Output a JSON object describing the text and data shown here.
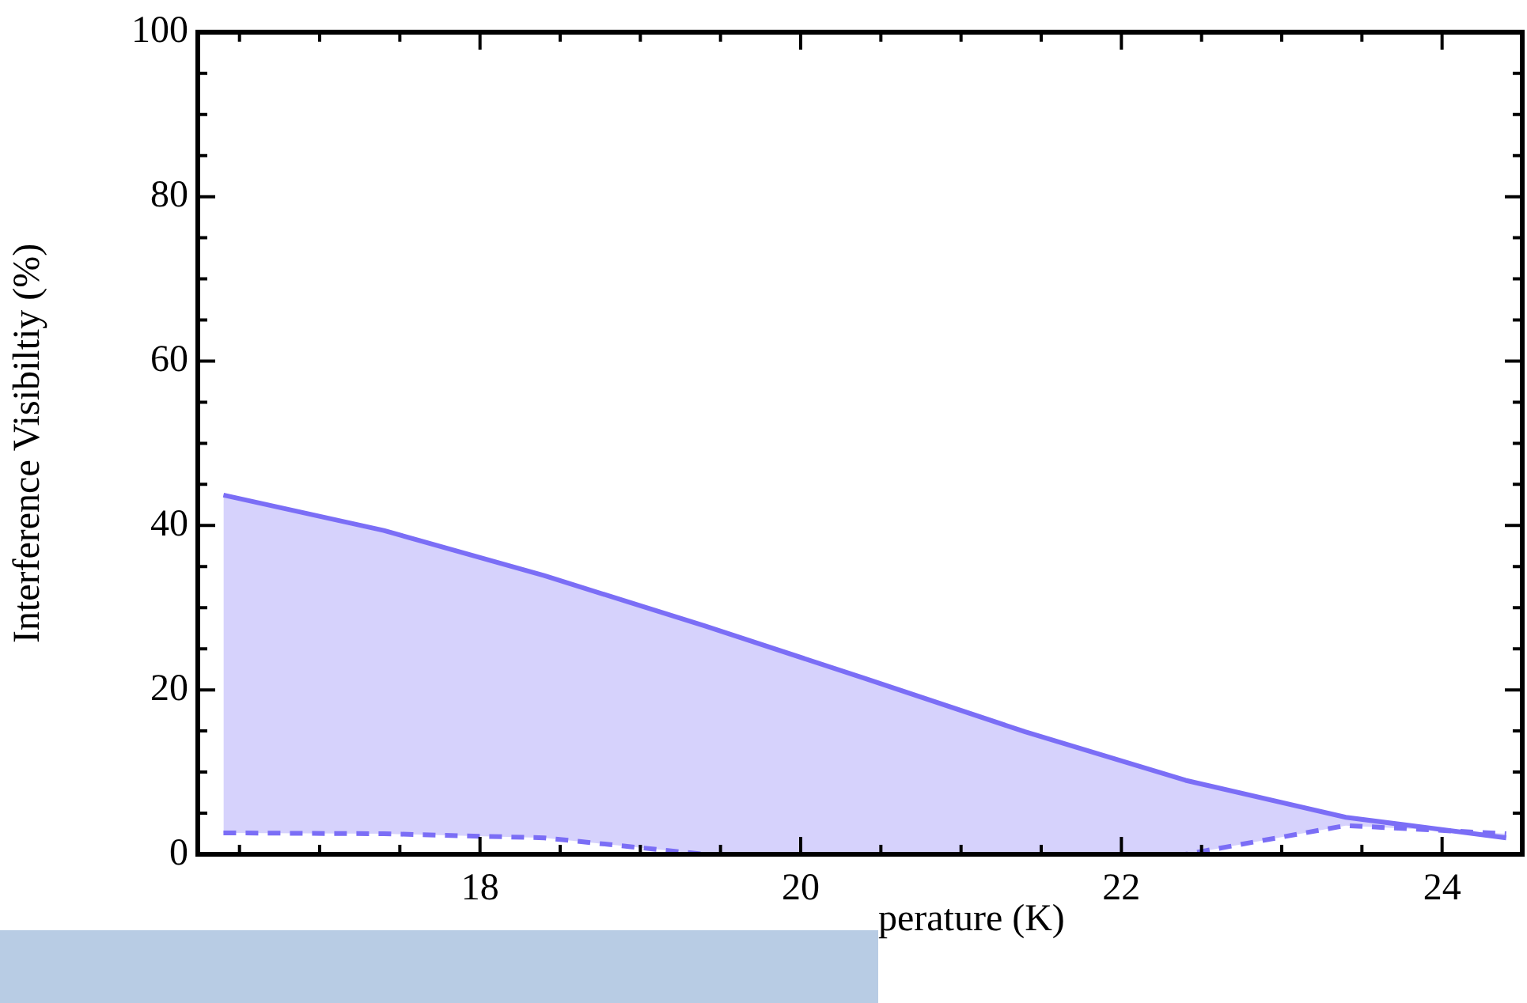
{
  "chart_data": {
    "type": "area",
    "xlabel": "perature (K)",
    "ylabel": "Interference Visibiltiy (%)",
    "x": [
      16.4,
      17.4,
      18.4,
      19.4,
      20.4,
      21.4,
      22.4,
      23.4,
      24.4
    ],
    "series": [
      {
        "color": "#7b6ef6",
        "values": [
          43.7,
          39.4,
          33.9,
          27.8,
          21.4,
          14.9,
          9.0,
          4.5,
          2.0
        ]
      },
      {
        "type": "line",
        "color": "#7b6ef6",
        "line_style": "dashed",
        "values": [
          2.6,
          2.5,
          2.0,
          0,
          null,
          null,
          0,
          3.5,
          2.5
        ]
      }
    ],
    "xlim": [
      16.24,
      24.5
    ],
    "xticks": [
      {
        "value": 16.5,
        "label": null
      },
      {
        "value": 17,
        "label": null
      },
      {
        "value": 17.5,
        "label": null
      },
      18,
      {
        "value": 18.5,
        "label": null
      },
      {
        "value": 19,
        "label": null
      },
      {
        "value": 19.5,
        "label": null
      },
      20,
      {
        "value": 20.5,
        "label": null
      },
      {
        "value": 21,
        "label": null
      },
      {
        "value": 21.5,
        "label": null
      },
      22,
      {
        "value": 22.5,
        "label": null
      },
      {
        "value": 23,
        "label": null
      },
      {
        "value": 23.5,
        "label": null
      },
      24
    ],
    "ylim": [
      0,
      100
    ],
    "yticks": [
      0,
      {
        "value": 5,
        "label": null
      },
      {
        "value": 10,
        "label": null
      },
      {
        "value": 15,
        "label": null
      },
      20,
      {
        "value": 25,
        "label": null
      },
      {
        "value": 30,
        "label": null
      },
      {
        "value": 35,
        "label": null
      },
      40,
      {
        "value": 45,
        "label": null
      },
      {
        "value": 50,
        "label": null
      },
      {
        "value": 55,
        "label": null
      },
      60,
      {
        "value": 65,
        "label": null
      },
      {
        "value": 70,
        "label": null
      },
      {
        "value": 75,
        "label": null
      },
      80,
      {
        "value": 85,
        "label": null
      },
      {
        "value": 90,
        "label": null
      },
      {
        "value": 95,
        "label": null
      },
      100
    ],
    "grid": false,
    "legend": false,
    "marker": "none"
  }
}
